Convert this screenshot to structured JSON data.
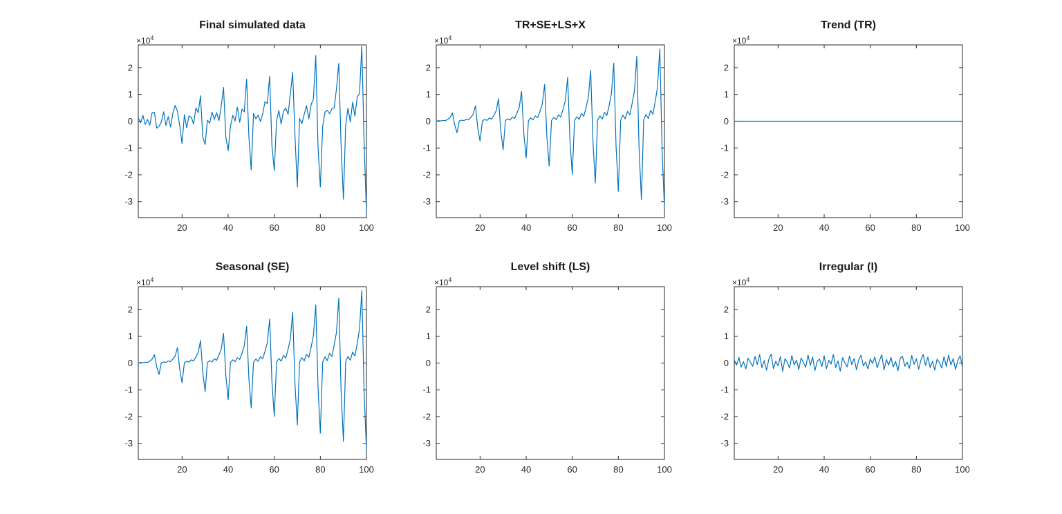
{
  "figure": {
    "background": "#ffffff"
  },
  "chart_data": {
    "type": "line",
    "layout": "2x3 subplot grid, MATLAB style",
    "line_color": "#0072BD",
    "axis": {
      "xlim": [
        1,
        100
      ],
      "ylim": [
        -3.6,
        2.85
      ],
      "x_ticks": [
        20,
        40,
        60,
        80,
        100
      ],
      "y_ticks": [
        -3,
        -2,
        -1,
        0,
        1,
        2
      ],
      "y_exponent_base": "×10",
      "y_exponent_power": "4",
      "y_unit_scale": "values are in units of 10^4",
      "x_values": "integers 1..100",
      "grid": false,
      "box": true
    },
    "charts": [
      {
        "title": "Final simulated data",
        "series_key": "final"
      },
      {
        "title": "TR+SE+LS+X",
        "series_key": "tr_se_ls_x"
      },
      {
        "title": "Trend (TR)",
        "y_const": 0
      },
      {
        "title": "Seasonal (SE)",
        "series_key": "seasonal"
      },
      {
        "title": "Level shift (LS)",
        "series_key": "level_shift"
      },
      {
        "title": "Irregular (I)",
        "series_key": "irregular"
      }
    ],
    "series": {
      "final": [
        0.12,
        -0.06,
        0.22,
        -0.12,
        0.07,
        -0.15,
        0.32,
        0.33,
        -0.26,
        -0.18,
        -0.04,
        0.35,
        -0.16,
        0.17,
        -0.22,
        0.29,
        0.59,
        0.37,
        -0.18,
        -0.84,
        0.25,
        -0.24,
        0.19,
        0.15,
        -0.11,
        0.5,
        0.32,
        0.95,
        -0.6,
        -0.87,
        0.04,
        -0.07,
        0.34,
        0.07,
        0.32,
        0.02,
        0.58,
        1.26,
        -0.61,
        -1.1,
        -0.19,
        0.22,
        0.01,
        0.52,
        -0.04,
        0.45,
        0.35,
        1.57,
        -0.58,
        -1.82,
        0.29,
        0.09,
        0.23,
        -0.01,
        0.28,
        0.73,
        0.66,
        1.68,
        -0.92,
        -1.84,
        0.01,
        0.4,
        -0.11,
        0.38,
        0.49,
        0.26,
        1.03,
        1.82,
        -0.6,
        -2.46,
        0.1,
        -0.09,
        0.26,
        0.58,
        0.09,
        0.62,
        0.83,
        2.45,
        -0.97,
        -2.46,
        -0.19,
        0.34,
        0.41,
        0.28,
        0.46,
        0.5,
        1.22,
        2.16,
        -0.89,
        -2.91,
        -0.14,
        0.49,
        -0.03,
        0.71,
        0.19,
        0.91,
        1.04,
        2.8,
        -0.87,
        -3.41
      ],
      "tr_se_ls_x": [
        0,
        0.02,
        0.01,
        0.03,
        0.02,
        0.07,
        0.14,
        0.31,
        -0.14,
        -0.43,
        0.01,
        0.04,
        0.02,
        0.08,
        0.05,
        0.15,
        0.26,
        0.58,
        -0.25,
        -0.74,
        0.01,
        0.07,
        0.03,
        0.12,
        0.08,
        0.22,
        0.39,
        0.84,
        -0.36,
        -1.06,
        0.02,
        0.09,
        0.04,
        0.16,
        0.1,
        0.3,
        0.52,
        1.11,
        -0.48,
        -1.37,
        0.02,
        0.12,
        0.05,
        0.2,
        0.13,
        0.37,
        0.65,
        1.37,
        -0.59,
        -1.68,
        0.03,
        0.15,
        0.06,
        0.24,
        0.16,
        0.44,
        0.77,
        1.64,
        -0.7,
        -1.99,
        0.03,
        0.17,
        0.07,
        0.29,
        0.18,
        0.52,
        0.9,
        1.9,
        -0.81,
        -2.31,
        0.04,
        0.2,
        0.08,
        0.33,
        0.21,
        0.59,
        1.03,
        2.17,
        -0.92,
        -2.62,
        0.04,
        0.23,
        0.09,
        0.37,
        0.24,
        0.67,
        1.15,
        2.43,
        -1.03,
        -2.93,
        0.05,
        0.25,
        0.1,
        0.41,
        0.26,
        0.74,
        1.28,
        2.7,
        -1.14,
        -3.25
      ],
      "seasonal": [
        0,
        0.02,
        0.01,
        0.03,
        0.02,
        0.07,
        0.14,
        0.31,
        -0.14,
        -0.43,
        0.01,
        0.04,
        0.02,
        0.08,
        0.05,
        0.15,
        0.26,
        0.58,
        -0.25,
        -0.74,
        0.01,
        0.07,
        0.03,
        0.12,
        0.08,
        0.22,
        0.39,
        0.84,
        -0.36,
        -1.06,
        0.02,
        0.09,
        0.04,
        0.16,
        0.1,
        0.3,
        0.52,
        1.11,
        -0.48,
        -1.37,
        0.02,
        0.12,
        0.05,
        0.2,
        0.13,
        0.37,
        0.65,
        1.37,
        -0.59,
        -1.68,
        0.03,
        0.15,
        0.06,
        0.24,
        0.16,
        0.44,
        0.77,
        1.64,
        -0.7,
        -1.99,
        0.03,
        0.17,
        0.07,
        0.29,
        0.18,
        0.52,
        0.9,
        1.9,
        -0.81,
        -2.31,
        0.04,
        0.2,
        0.08,
        0.33,
        0.21,
        0.59,
        1.03,
        2.17,
        -0.92,
        -2.62,
        0.04,
        0.23,
        0.09,
        0.37,
        0.24,
        0.67,
        1.15,
        2.43,
        -1.03,
        -2.93,
        0.05,
        0.25,
        0.1,
        0.41,
        0.26,
        0.74,
        1.28,
        2.7,
        -1.14,
        -3.25
      ],
      "level_shift": [],
      "irregular": [
        0.12,
        -0.08,
        0.21,
        -0.15,
        0.05,
        -0.22,
        0.18,
        0.02,
        -0.12,
        0.25,
        -0.05,
        0.31,
        -0.18,
        0.09,
        -0.27,
        0.14,
        0.33,
        -0.21,
        0.07,
        -0.1,
        0.24,
        -0.31,
        0.16,
        0.03,
        -0.19,
        0.28,
        -0.07,
        0.11,
        -0.24,
        0.19,
        0.02,
        -0.16,
        0.3,
        -0.09,
        0.22,
        -0.28,
        0.06,
        0.15,
        -0.13,
        0.27,
        -0.21,
        0.1,
        -0.04,
        0.32,
        -0.17,
        0.08,
        -0.3,
        0.2,
        0.01,
        -0.14,
        0.26,
        -0.06,
        0.17,
        -0.25,
        0.12,
        0.29,
        -0.11,
        0.04,
        -0.22,
        0.15,
        -0.02,
        0.23,
        -0.18,
        0.09,
        0.31,
        -0.26,
        0.13,
        -0.08,
        0.21,
        -0.15,
        0.06,
        -0.29,
        0.18,
        0.25,
        -0.12,
        0.03,
        -0.2,
        0.28,
        -0.05,
        0.16,
        -0.23,
        0.11,
        0.32,
        -0.09,
        0.22,
        -0.17,
        0.07,
        -0.27,
        0.14,
        0.02,
        -0.19,
        0.24,
        -0.13,
        0.3,
        -0.07,
        0.17,
        -0.24,
        0.1,
        0.27,
        -0.16
      ]
    }
  }
}
